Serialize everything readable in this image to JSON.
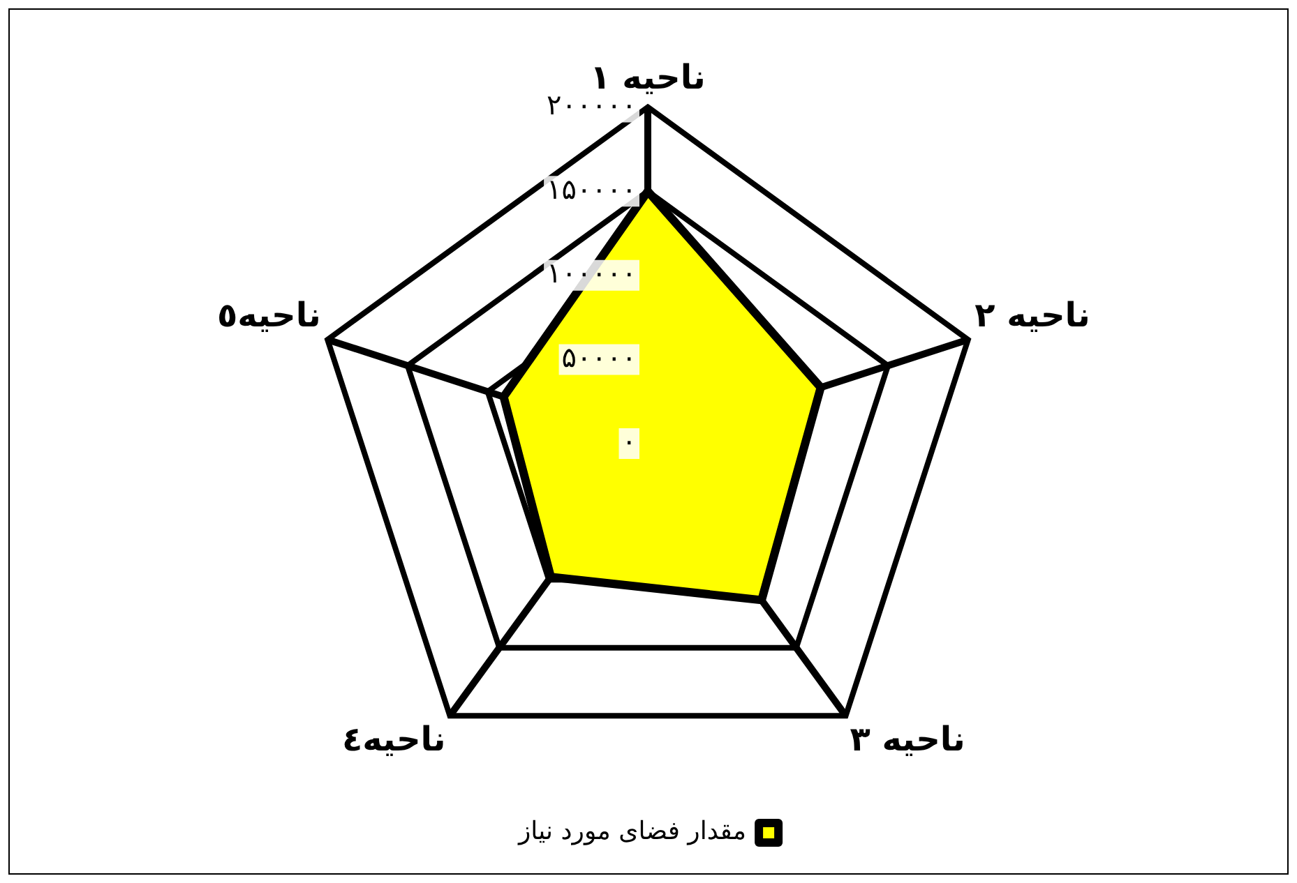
{
  "chart_data": {
    "type": "radar",
    "categories": [
      "ناحیه ۱",
      "ناحیه ۲",
      "ناحیه ۳",
      "ناحیه٤",
      "ناحیه٥"
    ],
    "series": [
      {
        "name": "مقدار فضای مورد نیاز",
        "color": "#ffff00",
        "values": [
          150000,
          108000,
          115000,
          98000,
          90000
        ]
      }
    ],
    "ylim": [
      0,
      200000
    ],
    "yticks": [
      {
        "value": 0,
        "label": "۰"
      },
      {
        "value": 50000,
        "label": "۵۰۰۰۰"
      },
      {
        "value": 100000,
        "label": "۱۰۰۰۰۰"
      },
      {
        "value": 150000,
        "label": "۱۵۰۰۰۰"
      },
      {
        "value": 200000,
        "label": "۲۰۰۰۰۰"
      }
    ],
    "grid": true,
    "legend": "bottom"
  }
}
